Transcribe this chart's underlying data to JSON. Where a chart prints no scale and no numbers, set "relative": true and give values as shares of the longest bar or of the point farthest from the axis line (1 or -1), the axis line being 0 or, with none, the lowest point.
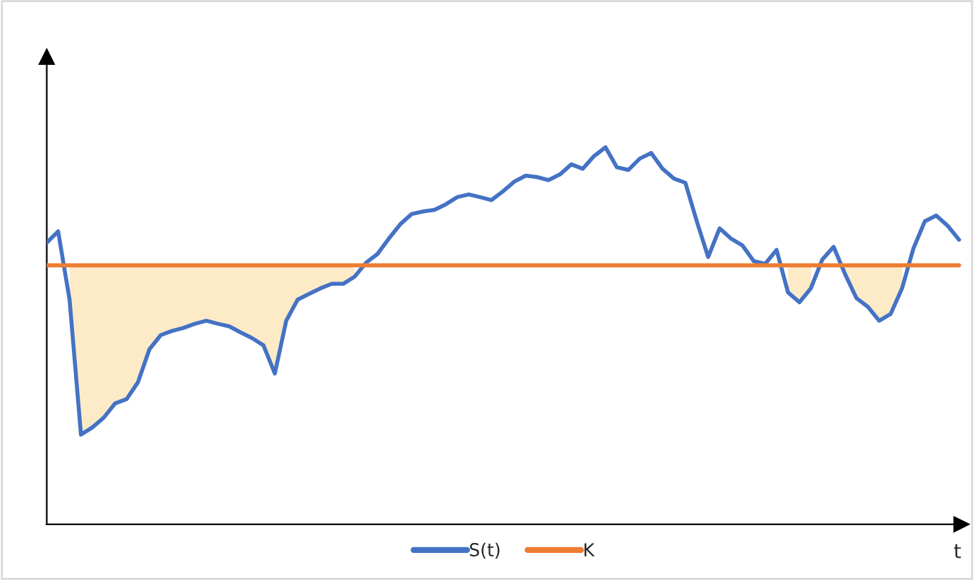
{
  "chart_data": {
    "type": "line",
    "relative": true,
    "xlabel": "t",
    "legend": "bottom",
    "grid": false,
    "categories": [
      null,
      null,
      null,
      null,
      null,
      null,
      null,
      null,
      null,
      null,
      null,
      null,
      null,
      null,
      null,
      null,
      null,
      null,
      null,
      null,
      null,
      null,
      null,
      null,
      null,
      null,
      null,
      null,
      null,
      null,
      null,
      null,
      null,
      null,
      null,
      null,
      null,
      null,
      null,
      null,
      null,
      null,
      null,
      null,
      null,
      null,
      null,
      null,
      null,
      null,
      null,
      null,
      null,
      null,
      null,
      null,
      null,
      null,
      null,
      null,
      null,
      null,
      null,
      null,
      null,
      null,
      null,
      null,
      null,
      null,
      null,
      null,
      null,
      null,
      null,
      null,
      null,
      null,
      null,
      null,
      null
    ],
    "series": [
      {
        "name": "S(t)",
        "color": "#4472c4",
        "values": [
          0.747,
          0.777,
          0.596,
          0.238,
          0.257,
          0.283,
          0.321,
          0.332,
          0.377,
          0.464,
          0.502,
          0.513,
          0.521,
          0.532,
          0.54,
          0.532,
          0.525,
          0.509,
          0.494,
          0.475,
          0.4,
          0.54,
          0.596,
          0.611,
          0.626,
          0.638,
          0.638,
          0.657,
          0.694,
          0.717,
          0.758,
          0.796,
          0.823,
          0.83,
          0.834,
          0.849,
          0.868,
          0.875,
          0.868,
          0.86,
          0.883,
          0.909,
          0.925,
          0.921,
          0.913,
          0.928,
          0.955,
          0.943,
          0.977,
          1,
          0.947,
          0.94,
          0.97,
          0.985,
          0.943,
          0.917,
          0.906,
          0.804,
          0.709,
          0.785,
          0.758,
          0.74,
          0.698,
          0.691,
          0.728,
          0.615,
          0.589,
          0.626,
          0.702,
          0.736,
          0.664,
          0.6,
          0.577,
          0.54,
          0.558,
          0.626,
          0.732,
          0.804,
          0.819,
          0.792,
          0.755
        ],
        "lower": [
          null,
          null,
          0.596,
          0.238,
          0.257,
          0.283,
          0.321,
          0.332,
          0.377,
          0.464,
          0.502,
          0.513,
          0.521,
          0.532,
          0.54,
          0.532,
          0.525,
          0.509,
          0.494,
          0.475,
          0.4,
          0.54,
          0.596,
          0.611,
          0.626,
          0.638,
          0.638,
          0.657,
          null,
          null,
          null,
          null,
          null,
          null,
          null,
          null,
          null,
          null,
          null,
          null,
          null,
          null,
          null,
          null,
          null,
          null,
          null,
          null,
          null,
          null,
          null,
          null,
          null,
          null,
          null,
          null,
          null,
          null,
          null,
          null,
          null,
          null,
          null,
          null,
          null,
          0.615,
          0.589,
          0.626,
          null,
          null,
          0.664,
          0.6,
          0.577,
          0.54,
          0.558,
          0.626,
          null,
          null,
          null,
          null,
          null
        ],
        "upper": [
          null,
          null,
          0.687,
          0.687,
          0.687,
          0.687,
          0.687,
          0.687,
          0.687,
          0.687,
          0.687,
          0.687,
          0.687,
          0.687,
          0.687,
          0.687,
          0.687,
          0.687,
          0.687,
          0.687,
          0.687,
          0.687,
          0.687,
          0.687,
          0.687,
          0.687,
          0.687,
          0.687,
          null,
          null,
          null,
          null,
          null,
          null,
          null,
          null,
          null,
          null,
          null,
          null,
          null,
          null,
          null,
          null,
          null,
          null,
          null,
          null,
          null,
          null,
          null,
          null,
          null,
          null,
          null,
          null,
          null,
          null,
          null,
          null,
          null,
          null,
          null,
          null,
          null,
          0.687,
          0.687,
          0.687,
          null,
          null,
          0.687,
          0.687,
          0.687,
          0.687,
          0.687,
          0.687,
          null,
          null,
          null,
          null,
          null
        ]
      },
      {
        "name": "K",
        "color": "#ed7d31",
        "values": [
          0.687,
          0.687,
          0.687,
          0.687,
          0.687,
          0.687,
          0.687,
          0.687,
          0.687,
          0.687,
          0.687,
          0.687,
          0.687,
          0.687,
          0.687,
          0.687,
          0.687,
          0.687,
          0.687,
          0.687,
          0.687,
          0.687,
          0.687,
          0.687,
          0.687,
          0.687,
          0.687,
          0.687,
          0.687,
          0.687,
          0.687,
          0.687,
          0.687,
          0.687,
          0.687,
          0.687,
          0.687,
          0.687,
          0.687,
          0.687,
          0.687,
          0.687,
          0.687,
          0.687,
          0.687,
          0.687,
          0.687,
          0.687,
          0.687,
          0.687,
          0.687,
          0.687,
          0.687,
          0.687,
          0.687,
          0.687,
          0.687,
          0.687,
          0.687,
          0.687,
          0.687,
          0.687,
          0.687,
          0.687,
          0.687,
          0.687,
          0.687,
          0.687,
          0.687,
          0.687,
          0.687,
          0.687,
          0.687,
          0.687,
          0.687,
          0.687,
          0.687,
          0.687,
          0.687,
          0.687,
          0.687
        ]
      }
    ]
  }
}
